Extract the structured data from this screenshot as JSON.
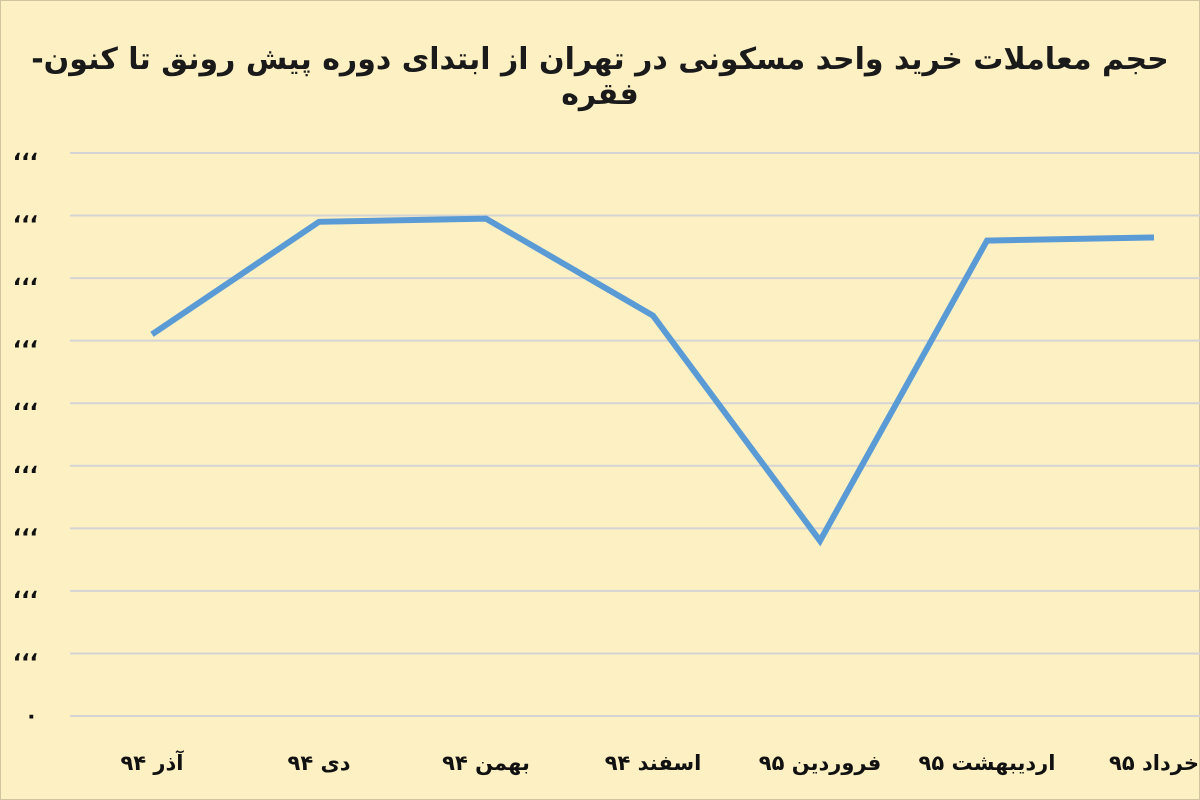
{
  "chart_data": {
    "type": "line",
    "title": "حجم معاملات خرید واحد مسکونی در تهران از ابتدای دوره پیش رونق تا کنون-فقره",
    "xlabel": "",
    "ylabel": "",
    "categories": [
      "آذر ۹۴",
      "دی ۹۴",
      "بهمن ۹۴",
      "اسفند ۹۴",
      "فروردین ۹۵",
      "اردیبهشت ۹۵",
      "خرداد ۹۵"
    ],
    "y_tick_labels": [
      "۰",
      "،،،",
      "،،،",
      "،،،",
      "،،،",
      "،،،",
      "،،،",
      "،،،",
      "،،،",
      "،،،"
    ],
    "ylim": [
      0,
      9
    ],
    "grid": true,
    "legend": "none",
    "series": [
      {
        "values": [
          6.1,
          7.9,
          7.95,
          6.4,
          2.8,
          7.6,
          7.65
        ],
        "color": "#5b9bd5"
      }
    ]
  }
}
